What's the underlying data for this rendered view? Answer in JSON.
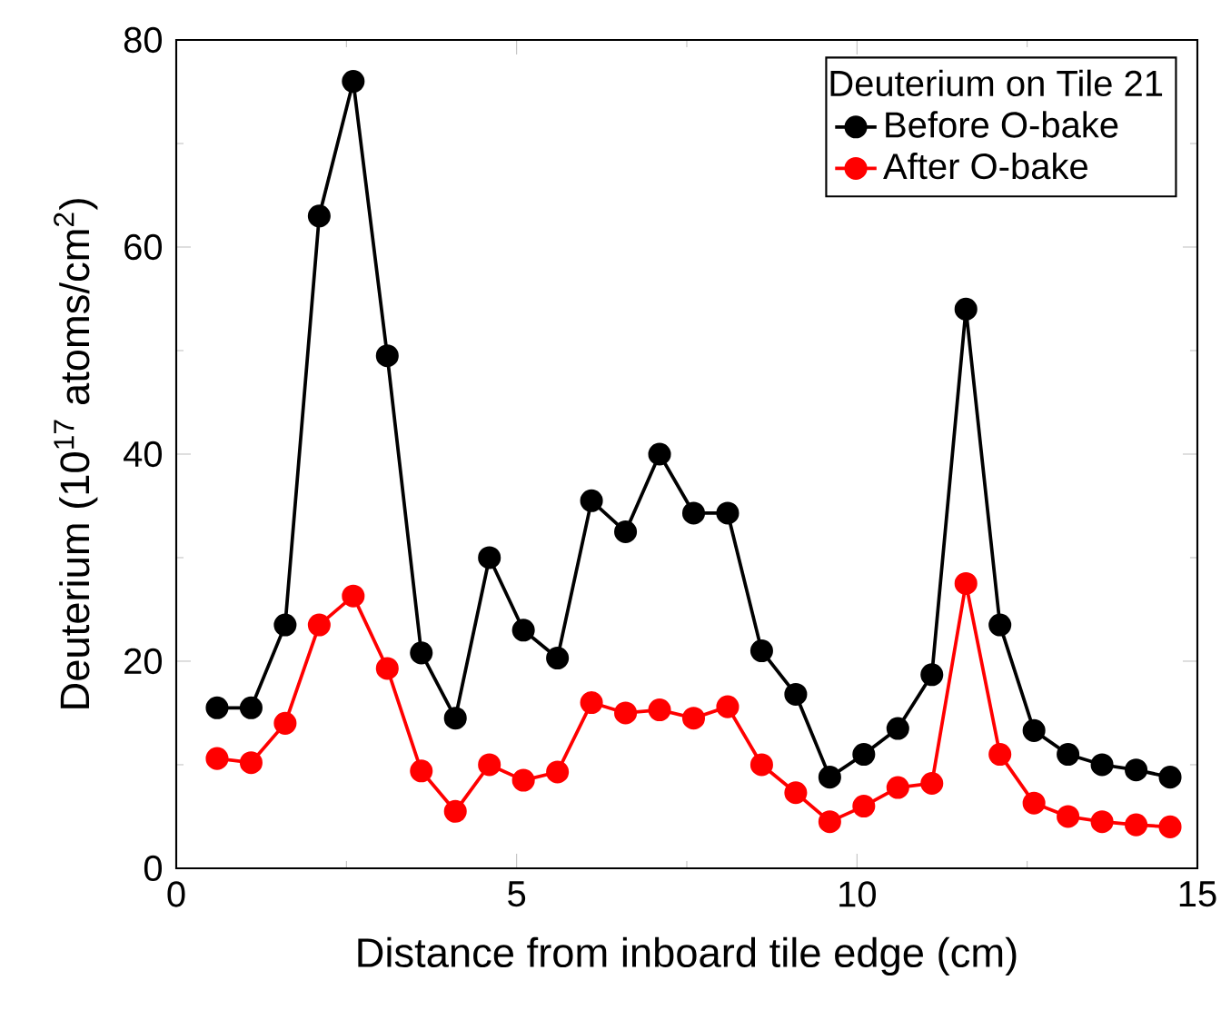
{
  "chart_data": {
    "type": "line",
    "xlabel": "Distance from inboard tile edge (cm)",
    "ylabel": "Deuterium (10$^{17}$ atoms/cm$^{2}$)",
    "legend_title": "Deuterium on Tile 21",
    "x": [
      0.6,
      1.1,
      1.6,
      2.1,
      2.6,
      3.1,
      3.6,
      4.1,
      4.6,
      5.1,
      5.6,
      6.1,
      6.6,
      7.1,
      7.6,
      8.1,
      8.6,
      9.1,
      9.6,
      10.1,
      10.6,
      11.1,
      11.6,
      12.1,
      12.6,
      13.1,
      13.6,
      14.1,
      14.6
    ],
    "series": [
      {
        "name": "Before O-bake",
        "color": "#000000",
        "values": [
          15.5,
          15.5,
          23.5,
          63,
          76,
          49.5,
          20.8,
          14.5,
          30,
          23,
          20.3,
          35.5,
          32.5,
          40,
          34.3,
          34.3,
          21,
          16.8,
          8.8,
          11,
          13.5,
          18.7,
          54,
          23.5,
          13.3,
          11,
          10,
          9.5,
          8.8
        ]
      },
      {
        "name": "After O-bake",
        "color": "#ff0000",
        "values": [
          10.6,
          10.2,
          14,
          23.5,
          26.3,
          19.3,
          9.4,
          5.5,
          10,
          8.5,
          9.3,
          16,
          15,
          15.3,
          14.5,
          15.6,
          10,
          7.3,
          4.5,
          6,
          7.8,
          8.2,
          27.5,
          11,
          6.3,
          5,
          4.5,
          4.2,
          4
        ]
      }
    ],
    "xlim": [
      0,
      15
    ],
    "ylim": [
      0,
      80
    ],
    "xticks": [
      0,
      5,
      10,
      15
    ],
    "yticks": [
      0,
      20,
      40,
      60,
      80
    ],
    "legend": "top right",
    "marker": "circle",
    "line_style": "solid",
    "grid": false
  }
}
